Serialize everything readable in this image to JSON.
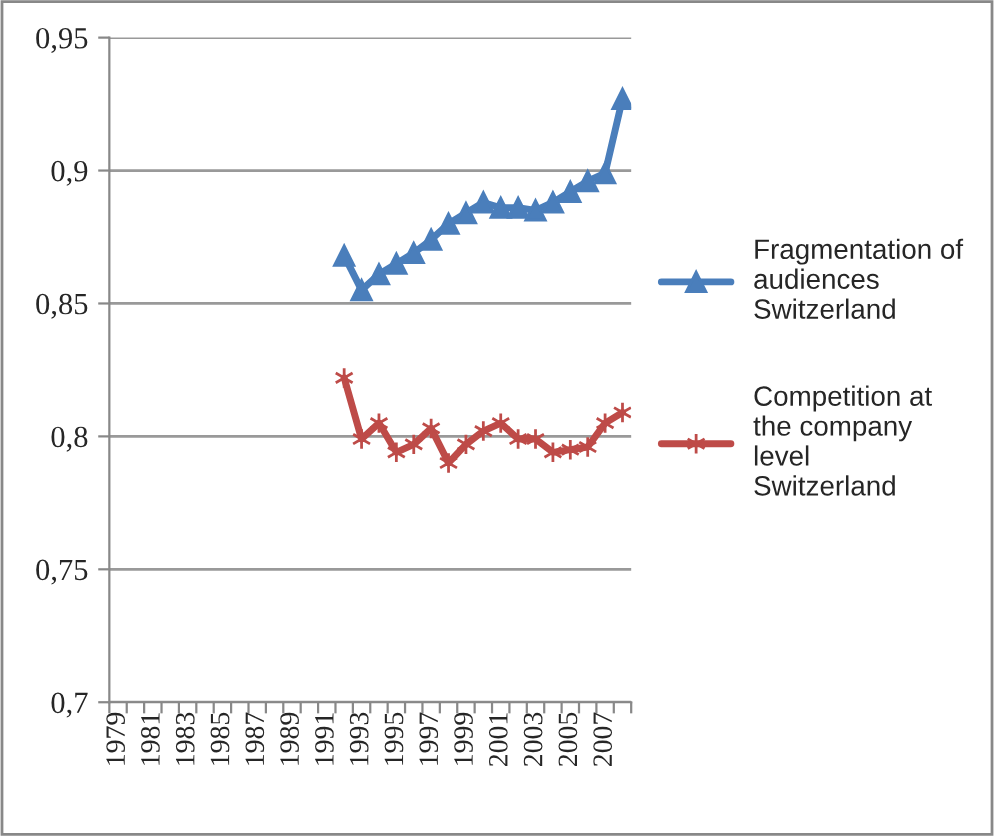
{
  "chart_data": {
    "type": "line",
    "categories": [
      "1979",
      null,
      "1981",
      null,
      "1983",
      null,
      "1985",
      null,
      "1987",
      null,
      "1989",
      null,
      "1991",
      null,
      "1993",
      null,
      "1995",
      null,
      "1997",
      null,
      "1999",
      null,
      "2001",
      null,
      "2003",
      null,
      "2005",
      null,
      "2007",
      null
    ],
    "series": [
      {
        "name": "Fragmentation of audiences Switzerland",
        "color": "#4a7ebb",
        "marker": "triangle",
        "values": [
          null,
          null,
          null,
          null,
          null,
          null,
          null,
          null,
          null,
          null,
          null,
          null,
          null,
          0.868,
          0.855,
          0.861,
          0.865,
          0.869,
          0.874,
          0.88,
          0.884,
          0.888,
          0.886,
          0.886,
          0.885,
          0.888,
          0.892,
          0.896,
          0.899,
          0.927
        ]
      },
      {
        "name": "Competition at the company level Switzerland",
        "color": "#be4b48",
        "marker": "cross",
        "values": [
          null,
          null,
          null,
          null,
          null,
          null,
          null,
          null,
          null,
          null,
          null,
          null,
          null,
          0.822,
          0.799,
          0.805,
          0.794,
          0.797,
          0.803,
          0.79,
          0.797,
          0.802,
          0.805,
          0.799,
          0.799,
          0.794,
          0.795,
          0.796,
          0.805,
          0.809
        ]
      }
    ],
    "ylim": [
      0.7,
      0.95
    ],
    "yticks": [
      {
        "value": 0.7,
        "label": "0,7"
      },
      {
        "value": 0.75,
        "label": "0,75"
      },
      {
        "value": 0.8,
        "label": "0,8"
      },
      {
        "value": 0.85,
        "label": "0,85"
      },
      {
        "value": 0.9,
        "label": "0,9"
      },
      {
        "value": 0.95,
        "label": "0,95"
      }
    ],
    "grid": "y",
    "legend": "right",
    "line_style": "solid"
  }
}
